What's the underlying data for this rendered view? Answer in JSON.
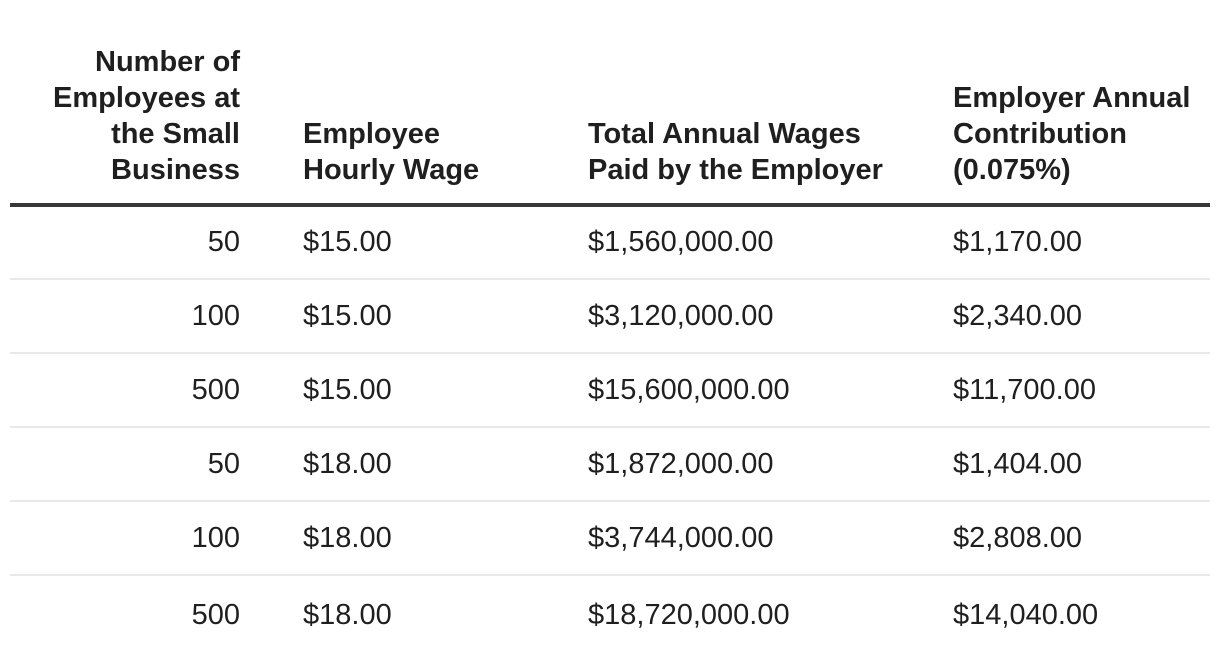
{
  "colors": {
    "background": "#ffffff",
    "text": "#1f1f1f",
    "header_rule": "#383838",
    "row_rule": "#e9e9e9"
  },
  "chart_data": {
    "type": "table",
    "columns": [
      {
        "label": "Number of Employees at the Small Business",
        "align": "right",
        "lines": [
          "Number of",
          "Employees at",
          "the Small",
          "Business"
        ]
      },
      {
        "label": "Employee Hourly Wage",
        "align": "left",
        "lines": [
          "Employee",
          "Hourly Wage"
        ]
      },
      {
        "label": "Total Annual Wages Paid by the Employer",
        "align": "left",
        "lines": [
          "Total Annual Wages",
          "Paid by the Employer"
        ]
      },
      {
        "label": "Employer Annual Contribution (0.075%)",
        "align": "left",
        "lines": [
          "Employer Annual",
          "Contribution",
          "(0.075%)"
        ]
      }
    ],
    "rows": [
      [
        "50",
        "$15.00",
        "$1,560,000.00",
        "$1,170.00"
      ],
      [
        "100",
        "$15.00",
        "$3,120,000.00",
        "$2,340.00"
      ],
      [
        "500",
        "$15.00",
        "$15,600,000.00",
        "$11,700.00"
      ],
      [
        "50",
        "$18.00",
        "$1,872,000.00",
        "$1,404.00"
      ],
      [
        "100",
        "$18.00",
        "$3,744,000.00",
        "$2,808.00"
      ],
      [
        "500",
        "$18.00",
        "$18,720,000.00",
        "$14,040.00"
      ]
    ]
  }
}
